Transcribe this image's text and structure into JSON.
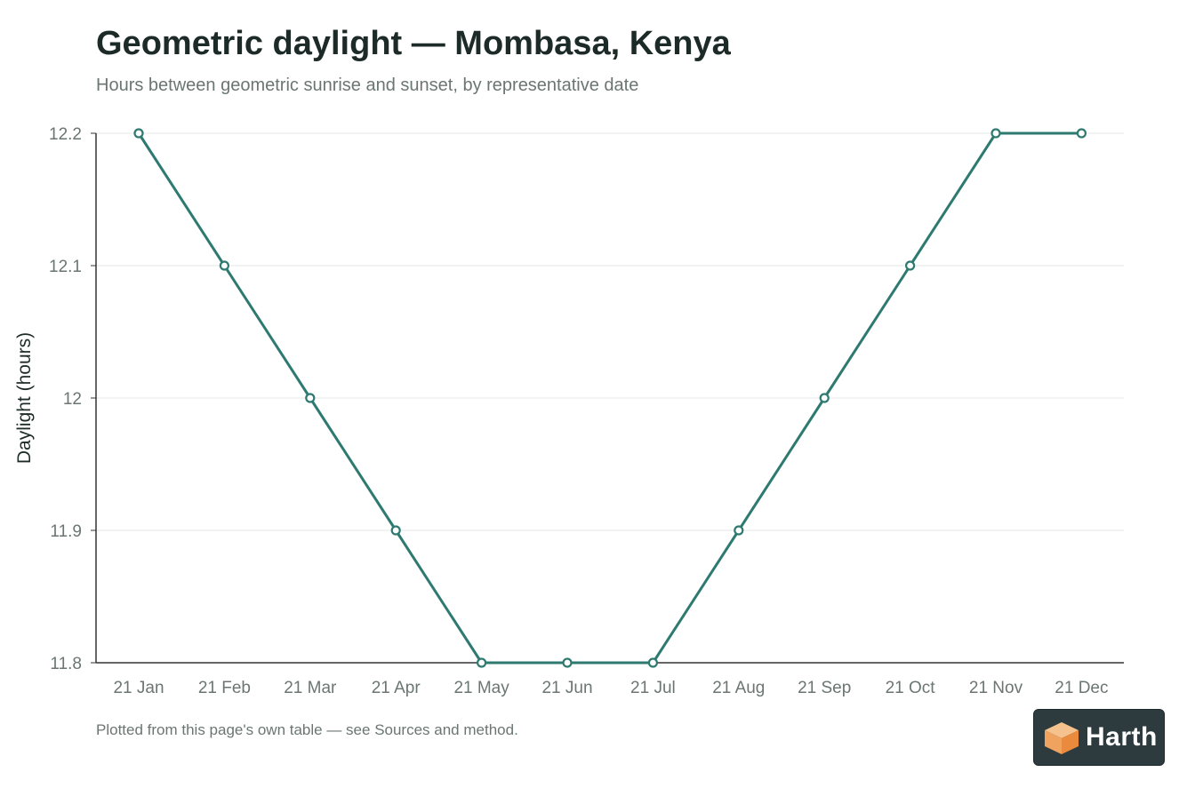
{
  "title": "Geometric daylight — Mombasa, Kenya",
  "subtitle": "Hours between geometric sunrise and sunset, by representative date",
  "footer": "Plotted from this page's own table — see Sources and method.",
  "logo": {
    "text": "Harth",
    "icon": "cube-icon"
  },
  "colors": {
    "line": "#2e7a71",
    "title": "#1d2b28",
    "muted": "#6b7673",
    "grid": "#e6e9e8",
    "axis": "#333333"
  },
  "chart_data": {
    "type": "line",
    "title": "Geometric daylight — Mombasa, Kenya",
    "subtitle": "Hours between geometric sunrise and sunset, by representative date",
    "xlabel": "",
    "ylabel": "Daylight (hours)",
    "categories": [
      "21 Jan",
      "21 Feb",
      "21 Mar",
      "21 Apr",
      "21 May",
      "21 Jun",
      "21 Jul",
      "21 Aug",
      "21 Sep",
      "21 Oct",
      "21 Nov",
      "21 Dec"
    ],
    "values": [
      12.2,
      12.1,
      12.0,
      11.9,
      11.8,
      11.8,
      11.8,
      11.9,
      12.0,
      12.1,
      12.2,
      12.2
    ],
    "ylim": [
      11.8,
      12.2
    ],
    "yticks": [
      11.8,
      11.9,
      12.0,
      12.1,
      12.2
    ],
    "ytick_labels": [
      "11.8",
      "11.9",
      "12",
      "12.1",
      "12.2"
    ],
    "grid": true,
    "legend": "none"
  }
}
